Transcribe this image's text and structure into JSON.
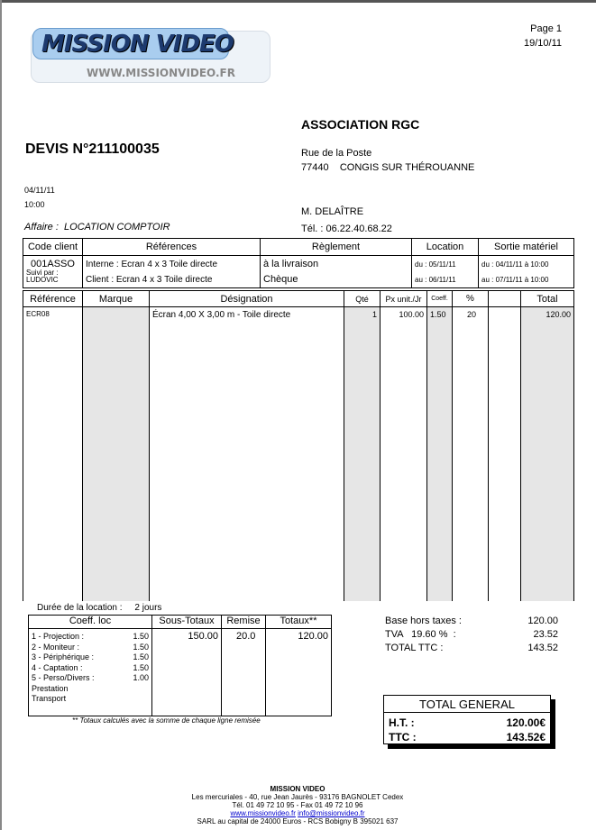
{
  "header": {
    "logo_text": "MISSION VIDEO",
    "logo_url": "WWW.MISSIONVIDEO.FR",
    "page": "Page 1",
    "print_date": "19/10/11"
  },
  "quote": {
    "title": "DEVIS N°211100035",
    "date": "04/11/11",
    "time": "10:00",
    "affaire_label": "Affaire :",
    "affaire": "LOCATION COMPTOIR"
  },
  "client": {
    "name": "ASSOCIATION RGC",
    "street": "Rue de la Poste",
    "postcode": "77440",
    "city": "CONGIS SUR THÉROUANNE",
    "contact": "M.  DELAÎTRE",
    "phone": "Tél. : 06.22.40.68.22"
  },
  "info": {
    "headers": [
      "Code client",
      "Références",
      "Règlement",
      "Location",
      "Sortie matériel"
    ],
    "code": "001ASSO",
    "suivi_label": "Suivi par :",
    "suivi": "LUDOVIC",
    "ref_interne": "Interne : Ecran 4 x 3 Toile directe",
    "ref_client": "Client  : Ecran 4 x 3 Toile directe",
    "reglement1": "à la livraison",
    "reglement2": "Chèque",
    "loc_du": "du : 05/11/11",
    "loc_au": "au : 06/11/11",
    "sortie_du": "du : 04/11/11 à 10:00",
    "sortie_au": "au : 07/11/11 à 10:00"
  },
  "items": {
    "headers": [
      "Référence",
      "Marque",
      "Désignation",
      "Qté",
      "Px unit./Jr",
      "Coeff.",
      "%",
      "",
      "Total"
    ],
    "rows": [
      {
        "ref": "ECR08",
        "marque": "",
        "designation": "Écran 4,00 X 3,00 m - Toile directe",
        "qte": "1",
        "px": "100.00",
        "coeff": "1.50",
        "pct": "20",
        "extra": "",
        "total": "120.00"
      }
    ]
  },
  "duration": {
    "label": "Durée de la location :",
    "value": "2 jours"
  },
  "coeff_table": {
    "headers": [
      "Coeff. loc",
      "Sous-Totaux",
      "Remise",
      "Totaux**"
    ],
    "rows": [
      {
        "label": "1 - Projection :",
        "value": "1.50"
      },
      {
        "label": "2 - Moniteur :",
        "value": "1.50"
      },
      {
        "label": "3 - Périphérique :",
        "value": "1.50"
      },
      {
        "label": "4 - Captation :",
        "value": "1.50"
      },
      {
        "label": "5 - Perso/Divers :",
        "value": "1.00"
      },
      {
        "label": "Prestation",
        "value": ""
      },
      {
        "label": "Transport",
        "value": ""
      }
    ],
    "sous_total": "150.00",
    "remise": "20.0",
    "totaux": "120.00",
    "note": "** Totaux calculés avec la somme de chaque ligne remisée"
  },
  "summary": {
    "base_label": "Base hors taxes :",
    "base": "120.00",
    "tva_label": "TVA   19.60 %  :",
    "tva": "23.52",
    "ttc_label": "TOTAL TTC :",
    "ttc": "143.52"
  },
  "total_general": {
    "title": "TOTAL GENERAL",
    "ht_label": "H.T. :",
    "ht": "120.00€",
    "ttc_label": "TTC :",
    "ttc": "143.52€"
  },
  "footer": {
    "company": "MISSION VIDEO",
    "address": "Les mercuriales - 40, rue Jean Jaurès - 93176 BAGNOLET Cedex",
    "phone": "Tél. 01 49 72 10 95 - Fax 01 49 72 10 96",
    "website": "www.missionvideo.fr",
    "email": "info@missionvideo.fr",
    "legal": "SARL au capital de 24000 Euros - RCS Bobigny B 395021 637"
  }
}
